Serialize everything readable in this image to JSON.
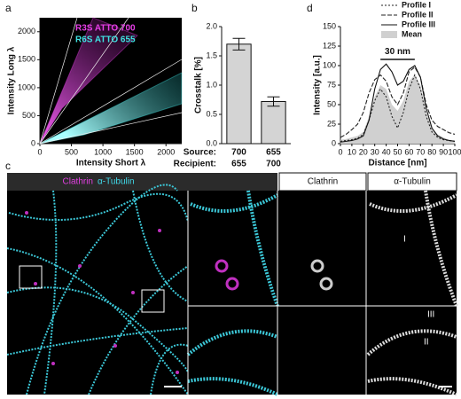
{
  "panels": [
    "a",
    "b",
    "c",
    "d"
  ],
  "chart_data": [
    {
      "type": "density",
      "x_label": "Intensity Short λ",
      "y_label": "Intensity Long λ",
      "xlim": [
        0,
        2250
      ],
      "ylim": [
        0,
        2250
      ],
      "xticks": [
        0,
        500,
        1000,
        1500,
        2000
      ],
      "yticks": [
        0,
        500,
        1000,
        1500,
        2000
      ],
      "series": [
        {
          "name": "R3S ATTO 700",
          "color": "#e83fe8"
        },
        {
          "name": "R6S ATTO 655",
          "color": "#3fe3e3"
        }
      ]
    },
    {
      "type": "bar",
      "y_label": "Crosstalk [%]",
      "row_labels": [
        "Source:",
        "Recipient:"
      ],
      "source": [
        "700",
        "655"
      ],
      "recipient": [
        "655",
        "700"
      ],
      "values": [
        1.7,
        0.72
      ],
      "errors": [
        0.1,
        0.08
      ],
      "color": "#d4d4d4",
      "ylim": [
        0,
        2
      ],
      "yticks": [
        {
          "value": 0,
          "label": "0.0"
        },
        {
          "value": 0.5,
          "label": "0.5"
        },
        {
          "value": 1,
          "label": "1.0"
        },
        {
          "value": 1.5,
          "label": "1.5"
        },
        {
          "value": 2,
          "label": "2.0"
        }
      ]
    },
    {
      "type": "line",
      "x_label": "Distance [nm]",
      "y_label": "Intensity [a.u.]",
      "annotation": "30 nm",
      "xlim": [
        0,
        100
      ],
      "ylim": [
        0,
        150
      ],
      "xticks": [
        0,
        10,
        20,
        30,
        40,
        50,
        60,
        70,
        80,
        90,
        100
      ],
      "yticks": [
        0,
        25,
        50,
        75,
        100,
        125,
        150
      ],
      "x": [
        0,
        5,
        10,
        15,
        20,
        25,
        30,
        35,
        40,
        45,
        50,
        55,
        60,
        65,
        70,
        75,
        80,
        85,
        90,
        95,
        100
      ],
      "series": [
        {
          "name": "Profile I",
          "style": "dotted",
          "color": "#222",
          "values": [
            3,
            4,
            5,
            7,
            12,
            30,
            55,
            70,
            60,
            35,
            20,
            40,
            70,
            88,
            70,
            35,
            15,
            8,
            5,
            4,
            3
          ]
        },
        {
          "name": "Profile II",
          "style": "dashed",
          "color": "#222",
          "values": [
            8,
            12,
            18,
            25,
            40,
            65,
            82,
            88,
            80,
            60,
            50,
            65,
            92,
            98,
            85,
            50,
            30,
            22,
            18,
            14,
            12
          ]
        },
        {
          "name": "Profile III",
          "style": "solid",
          "color": "#111",
          "values": [
            2,
            3,
            4,
            6,
            10,
            30,
            70,
            95,
            102,
            92,
            75,
            80,
            95,
            100,
            85,
            45,
            20,
            10,
            6,
            4,
            3
          ]
        },
        {
          "name": "Mean",
          "style": "area",
          "color": "#d0d0d0",
          "values": [
            5,
            6,
            8,
            10,
            15,
            35,
            60,
            75,
            70,
            50,
            42,
            55,
            80,
            88,
            75,
            40,
            20,
            12,
            8,
            5,
            4
          ]
        }
      ]
    }
  ],
  "panel_c": {
    "header_clathrin": "Clathrin",
    "header_tubulin": "α-Tubulin",
    "columns": [
      "Clathrin",
      "α-Tubulin"
    ],
    "profile_labels": [
      "I",
      "III",
      "II"
    ]
  }
}
